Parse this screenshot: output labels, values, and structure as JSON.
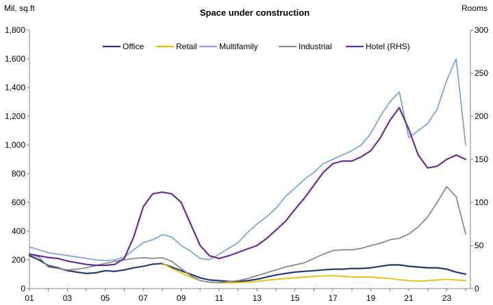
{
  "chart_data": {
    "type": "line",
    "title": "Space under construction",
    "ylabel_left": "Mil, sq.ft",
    "ylabel_right": "Rooms",
    "xlabel": "",
    "x_ticks": [
      "01",
      "03",
      "05",
      "07",
      "09",
      "11",
      "13",
      "15",
      "17",
      "19",
      "21",
      "23"
    ],
    "x_range": [
      2001,
      2024.25
    ],
    "ylim_left": [
      0,
      1800
    ],
    "ylim_right": [
      0,
      300
    ],
    "y_ticks_left": [
      "0",
      "200",
      "400",
      "600",
      "800",
      "1,000",
      "1,200",
      "1,400",
      "1,600",
      "1,800"
    ],
    "y_ticks_right": [
      "0",
      "50",
      "100",
      "150",
      "200",
      "250",
      "300"
    ],
    "legend_position": "top-center",
    "colors": {
      "office": "#1f3a7a",
      "retail": "#f5b800",
      "multifamily": "#7ba7e0",
      "industrial": "#8a8a8a",
      "hotel": "#6a2a9a"
    },
    "series": [
      {
        "key": "office",
        "name": "Office",
        "axis": "left",
        "x": [
          2001,
          2001.5,
          2002,
          2002.5,
          2003,
          2003.5,
          2004,
          2004.5,
          2005,
          2005.5,
          2006,
          2006.5,
          2007,
          2007.5,
          2008,
          2008.5,
          2009,
          2009.5,
          2010,
          2010.5,
          2011,
          2011.5,
          2012,
          2012.5,
          2013,
          2013.5,
          2014,
          2014.5,
          2015,
          2015.5,
          2016,
          2016.5,
          2017,
          2017.5,
          2018,
          2018.5,
          2019,
          2019.5,
          2020,
          2020.5,
          2021,
          2021.5,
          2022,
          2022.5,
          2023,
          2023.5,
          2024
        ],
        "values": [
          230,
          200,
          160,
          145,
          125,
          115,
          105,
          110,
          125,
          120,
          130,
          145,
          155,
          170,
          175,
          150,
          125,
          100,
          75,
          60,
          55,
          50,
          50,
          55,
          65,
          80,
          95,
          105,
          115,
          120,
          125,
          130,
          135,
          135,
          140,
          140,
          145,
          155,
          165,
          165,
          155,
          150,
          145,
          145,
          135,
          115,
          100
        ]
      },
      {
        "key": "retail",
        "name": "Retail",
        "axis": "left",
        "x": [
          2008,
          2008.5,
          2009,
          2009.5,
          2010,
          2010.5,
          2011,
          2011.5,
          2012,
          2012.5,
          2013,
          2013.5,
          2014,
          2014.5,
          2015,
          2015.5,
          2016,
          2016.5,
          2017,
          2017.5,
          2018,
          2018.5,
          2019,
          2019.5,
          2020,
          2020.5,
          2021,
          2021.5,
          2022,
          2022.5,
          2023,
          2023.5,
          2024
        ],
        "values": [
          180,
          140,
          110,
          80,
          55,
          45,
          40,
          40,
          42,
          45,
          50,
          58,
          65,
          70,
          75,
          80,
          85,
          88,
          90,
          85,
          82,
          80,
          80,
          75,
          70,
          62,
          55,
          52,
          55,
          60,
          65,
          60,
          55
        ]
      },
      {
        "key": "multifamily",
        "name": "Multifamily",
        "axis": "left",
        "x": [
          2001,
          2001.5,
          2002,
          2002.5,
          2003,
          2003.5,
          2004,
          2004.5,
          2005,
          2005.5,
          2006,
          2006.5,
          2007,
          2007.5,
          2008,
          2008.5,
          2009,
          2009.5,
          2010,
          2010.5,
          2011,
          2011.5,
          2012,
          2012.5,
          2013,
          2013.5,
          2014,
          2014.5,
          2015,
          2015.5,
          2016,
          2016.5,
          2017,
          2017.5,
          2018,
          2018.5,
          2019,
          2019.5,
          2020,
          2020.5,
          2021,
          2021.5,
          2022,
          2022.5,
          2023,
          2023.5,
          2024
        ],
        "values": [
          290,
          270,
          250,
          240,
          230,
          220,
          210,
          200,
          195,
          200,
          220,
          270,
          320,
          340,
          375,
          360,
          300,
          260,
          210,
          200,
          240,
          280,
          320,
          390,
          450,
          500,
          560,
          640,
          700,
          760,
          810,
          870,
          900,
          930,
          960,
          1000,
          1080,
          1200,
          1300,
          1370,
          1050,
          1100,
          1150,
          1250,
          1450,
          1600,
          1000
        ]
      },
      {
        "key": "industrial",
        "name": "Industrial",
        "axis": "left",
        "x": [
          2001,
          2001.5,
          2002,
          2002.5,
          2003,
          2003.5,
          2004,
          2004.5,
          2005,
          2005.5,
          2006,
          2006.5,
          2007,
          2007.5,
          2008,
          2008.5,
          2009,
          2009.5,
          2010,
          2010.5,
          2011,
          2011.5,
          2012,
          2012.5,
          2013,
          2013.5,
          2014,
          2014.5,
          2015,
          2015.5,
          2016,
          2016.5,
          2017,
          2017.5,
          2018,
          2018.5,
          2019,
          2019.5,
          2020,
          2020.5,
          2021,
          2021.5,
          2022,
          2022.5,
          2023,
          2023.5,
          2024
        ],
        "values": [
          240,
          220,
          150,
          140,
          130,
          135,
          145,
          160,
          175,
          190,
          200,
          210,
          215,
          210,
          215,
          190,
          140,
          90,
          55,
          45,
          42,
          48,
          55,
          70,
          90,
          110,
          130,
          150,
          165,
          180,
          210,
          240,
          265,
          270,
          270,
          280,
          300,
          315,
          340,
          350,
          380,
          430,
          500,
          600,
          710,
          640,
          380
        ]
      },
      {
        "key": "hotel",
        "name": "Hotel  (RHS)",
        "axis": "right",
        "x": [
          2001,
          2001.5,
          2002,
          2002.5,
          2003,
          2003.5,
          2004,
          2004.5,
          2005,
          2005.5,
          2006,
          2006.5,
          2007,
          2007.5,
          2008,
          2008.5,
          2009,
          2009.5,
          2010,
          2010.5,
          2011,
          2011.5,
          2012,
          2012.5,
          2013,
          2013.5,
          2014,
          2014.5,
          2015,
          2015.5,
          2016,
          2016.5,
          2017,
          2017.5,
          2018,
          2018.5,
          2019,
          2019.5,
          2020,
          2020.5,
          2021,
          2021.5,
          2022,
          2022.5,
          2023,
          2023.5,
          2024
        ],
        "values": [
          40,
          38,
          36,
          35,
          32,
          30,
          28,
          27,
          27,
          28,
          35,
          60,
          95,
          110,
          112,
          110,
          100,
          75,
          50,
          38,
          35,
          38,
          42,
          46,
          50,
          58,
          68,
          78,
          92,
          105,
          120,
          135,
          145,
          148,
          148,
          153,
          160,
          175,
          195,
          210,
          185,
          155,
          140,
          142,
          150,
          155,
          150
        ]
      }
    ]
  }
}
